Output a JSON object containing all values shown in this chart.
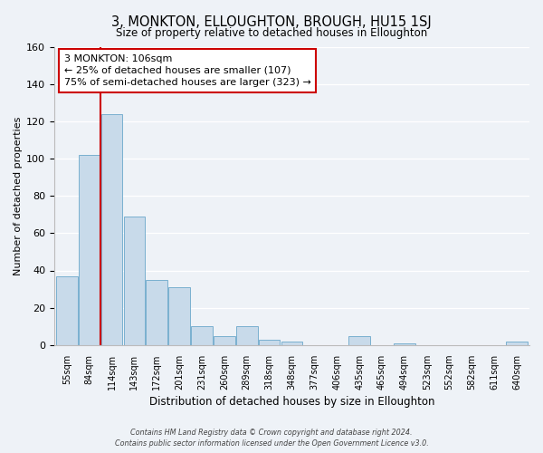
{
  "title": "3, MONKTON, ELLOUGHTON, BROUGH, HU15 1SJ",
  "subtitle": "Size of property relative to detached houses in Elloughton",
  "xlabel": "Distribution of detached houses by size in Elloughton",
  "ylabel": "Number of detached properties",
  "bin_labels": [
    "55sqm",
    "84sqm",
    "114sqm",
    "143sqm",
    "172sqm",
    "201sqm",
    "231sqm",
    "260sqm",
    "289sqm",
    "318sqm",
    "348sqm",
    "377sqm",
    "406sqm",
    "435sqm",
    "465sqm",
    "494sqm",
    "523sqm",
    "552sqm",
    "582sqm",
    "611sqm",
    "640sqm"
  ],
  "bar_values": [
    37,
    102,
    124,
    69,
    35,
    31,
    10,
    5,
    10,
    3,
    2,
    0,
    0,
    5,
    0,
    1,
    0,
    0,
    0,
    0,
    2
  ],
  "bar_color": "#c8daea",
  "bar_edge_color": "#7ab0d0",
  "vline_x_index": 1,
  "vline_color": "#cc0000",
  "annotation_title": "3 MONKTON: 106sqm",
  "annotation_line1": "← 25% of detached houses are smaller (107)",
  "annotation_line2": "75% of semi-detached houses are larger (323) →",
  "annotation_box_color": "#ffffff",
  "annotation_box_edge": "#cc0000",
  "ylim": [
    0,
    160
  ],
  "yticks": [
    0,
    20,
    40,
    60,
    80,
    100,
    120,
    140,
    160
  ],
  "footer1": "Contains HM Land Registry data © Crown copyright and database right 2024.",
  "footer2": "Contains public sector information licensed under the Open Government Licence v3.0.",
  "bg_color": "#eef2f7"
}
